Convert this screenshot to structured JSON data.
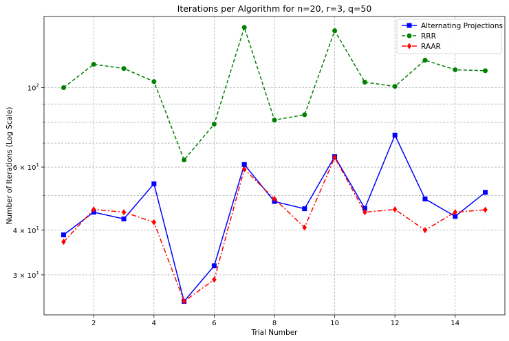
{
  "chart_data": {
    "type": "line",
    "title": "Iterations per Algorithm for n=20, r=3, q=50",
    "xlabel": "Trial Number",
    "ylabel": "Number of Iterations (Log Scale)",
    "xlim": [
      0.35,
      15.65
    ],
    "ylim": [
      23.2,
      158
    ],
    "yscale": "log",
    "grid": true,
    "legend_position": "top-right",
    "x": [
      1,
      2,
      3,
      4,
      5,
      6,
      7,
      8,
      9,
      10,
      11,
      12,
      13,
      14,
      15
    ],
    "x_ticks": [
      2,
      4,
      6,
      8,
      10,
      12,
      14
    ],
    "y_ticks": [
      {
        "value": 30,
        "base": "3 × 10",
        "exp": "1"
      },
      {
        "value": 40,
        "base": "4 × 10",
        "exp": "1"
      },
      {
        "value": 60,
        "base": "6 × 10",
        "exp": "1"
      },
      {
        "value": 100,
        "base": "10",
        "exp": "2"
      }
    ],
    "y_minor_grid": [
      50,
      70,
      80,
      90
    ],
    "series": [
      {
        "name": "Alternating Projections",
        "color": "#0000ff",
        "linestyle": "solid",
        "marker": "square",
        "values": [
          38.8,
          44.9,
          43.0,
          53.9,
          25.3,
          31.8,
          61.0,
          48.1,
          45.9,
          64.2,
          46.0,
          73.7,
          48.9,
          43.7,
          51.0
        ]
      },
      {
        "name": "RRR",
        "color": "#008000",
        "linestyle": "dashed",
        "marker": "circle",
        "values": [
          100.0,
          116.2,
          113.1,
          104.0,
          62.8,
          79.1,
          147.3,
          81.2,
          84.0,
          144.2,
          103.6,
          100.8,
          119.3,
          112.2,
          111.5
        ]
      },
      {
        "name": "RAAR",
        "color": "#ff0000",
        "linestyle": "dashdot",
        "marker": "diamond",
        "values": [
          37.1,
          45.7,
          44.9,
          42.1,
          25.3,
          29.1,
          59.2,
          48.9,
          40.7,
          63.8,
          44.9,
          45.7,
          40.0,
          44.9,
          45.6
        ]
      }
    ]
  }
}
